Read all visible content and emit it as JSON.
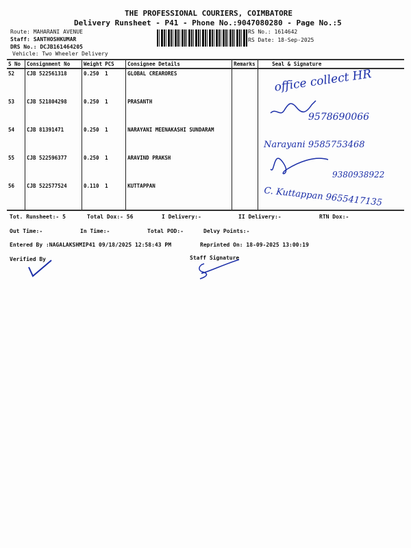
{
  "header": {
    "company": "THE PROFESSIONAL COURIERS, COIMBATORE",
    "subtitle": "Delivery Runsheet - P41 - Phone No.:9047080280 - Page No.:5",
    "route": "Route: MAHARANI  AVENUE",
    "staff": "Staff: SANTHOSHKUMAR",
    "drs": "DRS No.: DCJB161464205",
    "vehicle": "Vehicle: Two Wheeler Delivery",
    "rs_no": "RS No.: 1614642",
    "rs_date": "RS Date: 18-Sep-2025"
  },
  "table": {
    "columns": [
      "S No",
      "Consignment No",
      "Weight",
      "PCS",
      "Consignee Details",
      "Remarks",
      "Seal & Signature"
    ],
    "rows": [
      {
        "sno": "52",
        "cn": "CJB 522561318",
        "weight": "0.250",
        "pcs": "1",
        "consignee": "GLOBAL CREARORES",
        "remarks": "",
        "handwriting": "office collect HR"
      },
      {
        "sno": "53",
        "cn": "CJB 521804298",
        "weight": "0.250",
        "pcs": "1",
        "consignee": "PRASANTH",
        "remarks": "",
        "handwriting": "9578690066"
      },
      {
        "sno": "54",
        "cn": "CJB 81391471",
        "weight": "0.250",
        "pcs": "1",
        "consignee": "NARAYANI MEENAKASHI SUNDARAM",
        "remarks": "",
        "handwriting": "Narayani 9585753468"
      },
      {
        "sno": "55",
        "cn": "CJB 522596377",
        "weight": "0.250",
        "pcs": "1",
        "consignee": "ARAVIND PRAKSH",
        "remarks": "",
        "handwriting": "9380938922"
      },
      {
        "sno": "56",
        "cn": "CJB 522577524",
        "weight": "0.110",
        "pcs": "1",
        "consignee": "KUTTAPPAN",
        "remarks": "",
        "handwriting": "C. Kuttappan 9655417135"
      }
    ]
  },
  "summary": {
    "tot_runsheet": "Tot. Runsheet:- 5",
    "total_dox": "Total Dox:-   56",
    "i_delivery": "I Delivery:-",
    "ii_delivery": "II Delivery:-",
    "rtn_dox": "RTN Dox:-",
    "out_time": "Out Time:-",
    "in_time": "In Time:-",
    "total_pod": "Total POD:-",
    "delvy_points": "Delvy Points:-",
    "entered_by": "Entered By :NAGALAKSHMIP41 09/18/2025 12:58:43 PM",
    "reprinted_on": "Reprinted On: 18-09-2025 13:00:19",
    "verified_by": "Verified By",
    "staff_signature": "Staff Signature"
  },
  "colors": {
    "ink": "#1c2fa8",
    "text": "#111111"
  }
}
